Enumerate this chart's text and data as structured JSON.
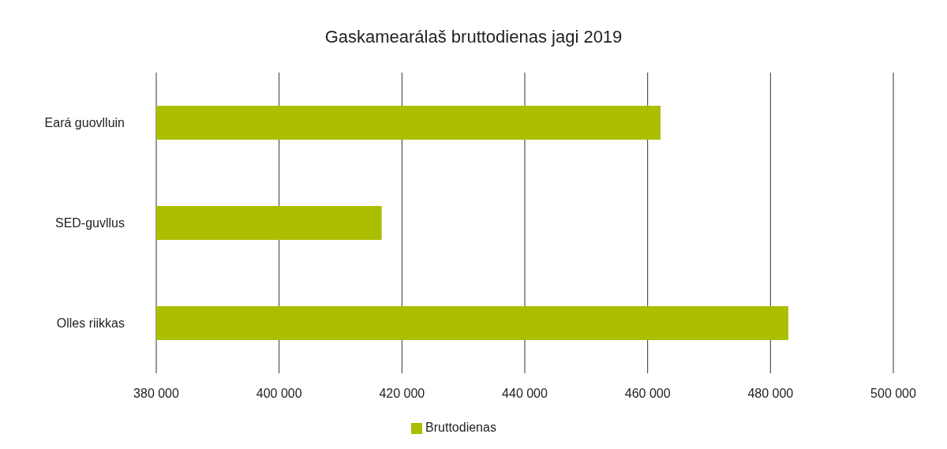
{
  "chart_data": {
    "type": "bar",
    "orientation": "horizontal",
    "title": "Gaskamearálaš bruttodienas jagi 2019",
    "categories": [
      "Eará guovlluin",
      "SED-guvllus",
      "Olles riikkas"
    ],
    "series": [
      {
        "name": "Bruttodienas",
        "color": "#abbe00",
        "values": [
          462100,
          416700,
          482900
        ]
      }
    ],
    "xlim": [
      380000,
      500000
    ],
    "xticks": [
      {
        "value": 380000,
        "label": "380 000"
      },
      {
        "value": 400000,
        "label": "400 000"
      },
      {
        "value": 420000,
        "label": "420 000"
      },
      {
        "value": 440000,
        "label": "440 000"
      },
      {
        "value": 460000,
        "label": "460 000"
      },
      {
        "value": 480000,
        "label": "480 000"
      },
      {
        "value": 500000,
        "label": "500 000"
      }
    ],
    "grid": "x",
    "legend": "bottom"
  }
}
